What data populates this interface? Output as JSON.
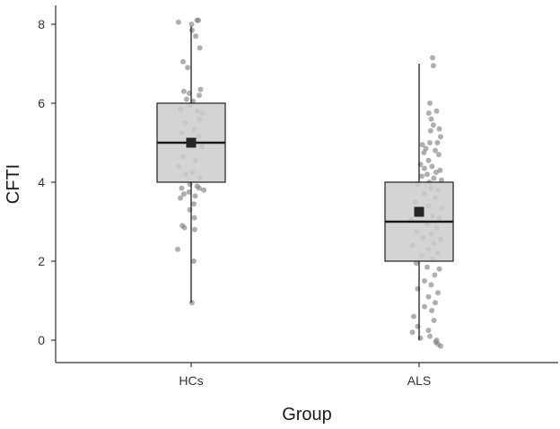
{
  "chart_data": {
    "type": "boxplot",
    "xlabel": "Group",
    "ylabel": "CFTI",
    "ylim": [
      -0.6,
      8.6
    ],
    "yticks": [
      0,
      2,
      4,
      6,
      8
    ],
    "categories": [
      "HCs",
      "ALS"
    ],
    "grid": false,
    "legend": "none",
    "colors": {
      "box_fill": "#cccccc",
      "outline": "#1f1f1f",
      "point": "#7a7a7a",
      "mean": "#262626"
    },
    "groups": [
      {
        "name": "HCs",
        "whisker_low": 0.95,
        "q1": 4.0,
        "median": 5.0,
        "q3": 6.0,
        "whisker_high": 7.95,
        "mean": 5.0,
        "points": [
          [
            -0.47,
            8.05
          ],
          [
            0.02,
            8.0
          ],
          [
            0.22,
            8.1
          ],
          [
            0.27,
            8.1
          ],
          [
            0.03,
            7.85
          ],
          [
            0.17,
            7.7
          ],
          [
            0.32,
            7.4
          ],
          [
            -0.3,
            7.05
          ],
          [
            -0.13,
            6.9
          ],
          [
            -0.27,
            6.3
          ],
          [
            -0.07,
            6.25
          ],
          [
            0.35,
            6.35
          ],
          [
            0.3,
            6.2
          ],
          [
            -0.17,
            6.1
          ],
          [
            0.07,
            6.05
          ],
          [
            -0.05,
            5.95
          ],
          [
            -0.4,
            5.85
          ],
          [
            0.23,
            5.8
          ],
          [
            0.42,
            5.75
          ],
          [
            0.3,
            5.6
          ],
          [
            -0.22,
            5.5
          ],
          [
            0.12,
            5.35
          ],
          [
            -0.35,
            5.25
          ],
          [
            0.28,
            5.15
          ],
          [
            -0.1,
            4.95
          ],
          [
            0.4,
            4.9
          ],
          [
            -0.3,
            4.65
          ],
          [
            0.15,
            4.55
          ],
          [
            -0.45,
            4.4
          ],
          [
            0.05,
            4.25
          ],
          [
            -0.2,
            4.2
          ],
          [
            0.33,
            4.1
          ],
          [
            -0.05,
            3.95
          ],
          [
            0.22,
            3.9
          ],
          [
            -0.35,
            3.85
          ],
          [
            0.3,
            3.85
          ],
          [
            0.47,
            3.8
          ],
          [
            -0.08,
            3.75
          ],
          [
            -0.27,
            3.7
          ],
          [
            0.15,
            3.65
          ],
          [
            -0.4,
            3.6
          ],
          [
            0.1,
            3.45
          ],
          [
            -0.05,
            3.3
          ],
          [
            0.12,
            3.1
          ],
          [
            -0.33,
            2.9
          ],
          [
            -0.25,
            2.85
          ],
          [
            0.13,
            2.8
          ],
          [
            -0.5,
            2.3
          ],
          [
            0.1,
            2.0
          ],
          [
            0.03,
            0.95
          ]
        ]
      },
      {
        "name": "ALS",
        "whisker_low": 0.0,
        "q1": 2.0,
        "median": 3.0,
        "q3": 4.0,
        "whisker_high": 7.0,
        "mean": 3.25,
        "points": [
          [
            0.5,
            7.15
          ],
          [
            0.53,
            6.95
          ],
          [
            0.4,
            6.0
          ],
          [
            0.36,
            5.75
          ],
          [
            0.65,
            5.8
          ],
          [
            0.45,
            5.6
          ],
          [
            0.53,
            5.45
          ],
          [
            0.75,
            5.35
          ],
          [
            0.8,
            5.15
          ],
          [
            0.43,
            5.3
          ],
          [
            0.68,
            5.0
          ],
          [
            0.4,
            5.0
          ],
          [
            0.12,
            4.95
          ],
          [
            0.25,
            4.85
          ],
          [
            0.6,
            4.8
          ],
          [
            0.18,
            4.75
          ],
          [
            0.73,
            4.7
          ],
          [
            0.35,
            4.55
          ],
          [
            0.05,
            4.45
          ],
          [
            0.48,
            4.4
          ],
          [
            0.78,
            4.3
          ],
          [
            0.2,
            4.35
          ],
          [
            0.63,
            4.25
          ],
          [
            0.3,
            4.2
          ],
          [
            0.1,
            4.15
          ],
          [
            0.55,
            4.1
          ],
          [
            0.83,
            4.05
          ],
          [
            0.38,
            4.0
          ],
          [
            -0.05,
            3.95
          ],
          [
            0.45,
            3.85
          ],
          [
            0.7,
            3.8
          ],
          [
            0.2,
            3.7
          ],
          [
            0.6,
            3.6
          ],
          [
            -0.15,
            3.5
          ],
          [
            0.35,
            3.4
          ],
          [
            0.85,
            3.35
          ],
          [
            0.05,
            3.25
          ],
          [
            0.5,
            3.15
          ],
          [
            0.75,
            3.1
          ],
          [
            -0.3,
            3.05
          ],
          [
            0.3,
            2.95
          ],
          [
            0.65,
            2.85
          ],
          [
            -0.1,
            2.75
          ],
          [
            0.45,
            2.7
          ],
          [
            0.15,
            2.6
          ],
          [
            0.8,
            2.55
          ],
          [
            0.55,
            2.45
          ],
          [
            -0.25,
            2.4
          ],
          [
            0.35,
            2.3
          ],
          [
            0.7,
            2.2
          ],
          [
            0.1,
            2.15
          ],
          [
            0.5,
            2.05
          ],
          [
            -0.1,
            1.95
          ],
          [
            0.3,
            1.85
          ],
          [
            0.75,
            1.8
          ],
          [
            0.58,
            1.65
          ],
          [
            0.2,
            1.5
          ],
          [
            0.45,
            1.4
          ],
          [
            -0.05,
            1.3
          ],
          [
            0.7,
            1.2
          ],
          [
            0.35,
            1.1
          ],
          [
            0.6,
            0.95
          ],
          [
            0.2,
            0.85
          ],
          [
            0.47,
            0.75
          ],
          [
            -0.2,
            0.6
          ],
          [
            0.55,
            0.5
          ],
          [
            -0.05,
            0.35
          ],
          [
            0.35,
            0.25
          ],
          [
            -0.25,
            0.2
          ],
          [
            0.4,
            0.1
          ],
          [
            0.05,
            0.05
          ],
          [
            0.62,
            -0.05
          ],
          [
            0.7,
            -0.1
          ],
          [
            0.8,
            -0.15
          ],
          [
            0.65,
            0.0
          ]
        ]
      }
    ]
  }
}
